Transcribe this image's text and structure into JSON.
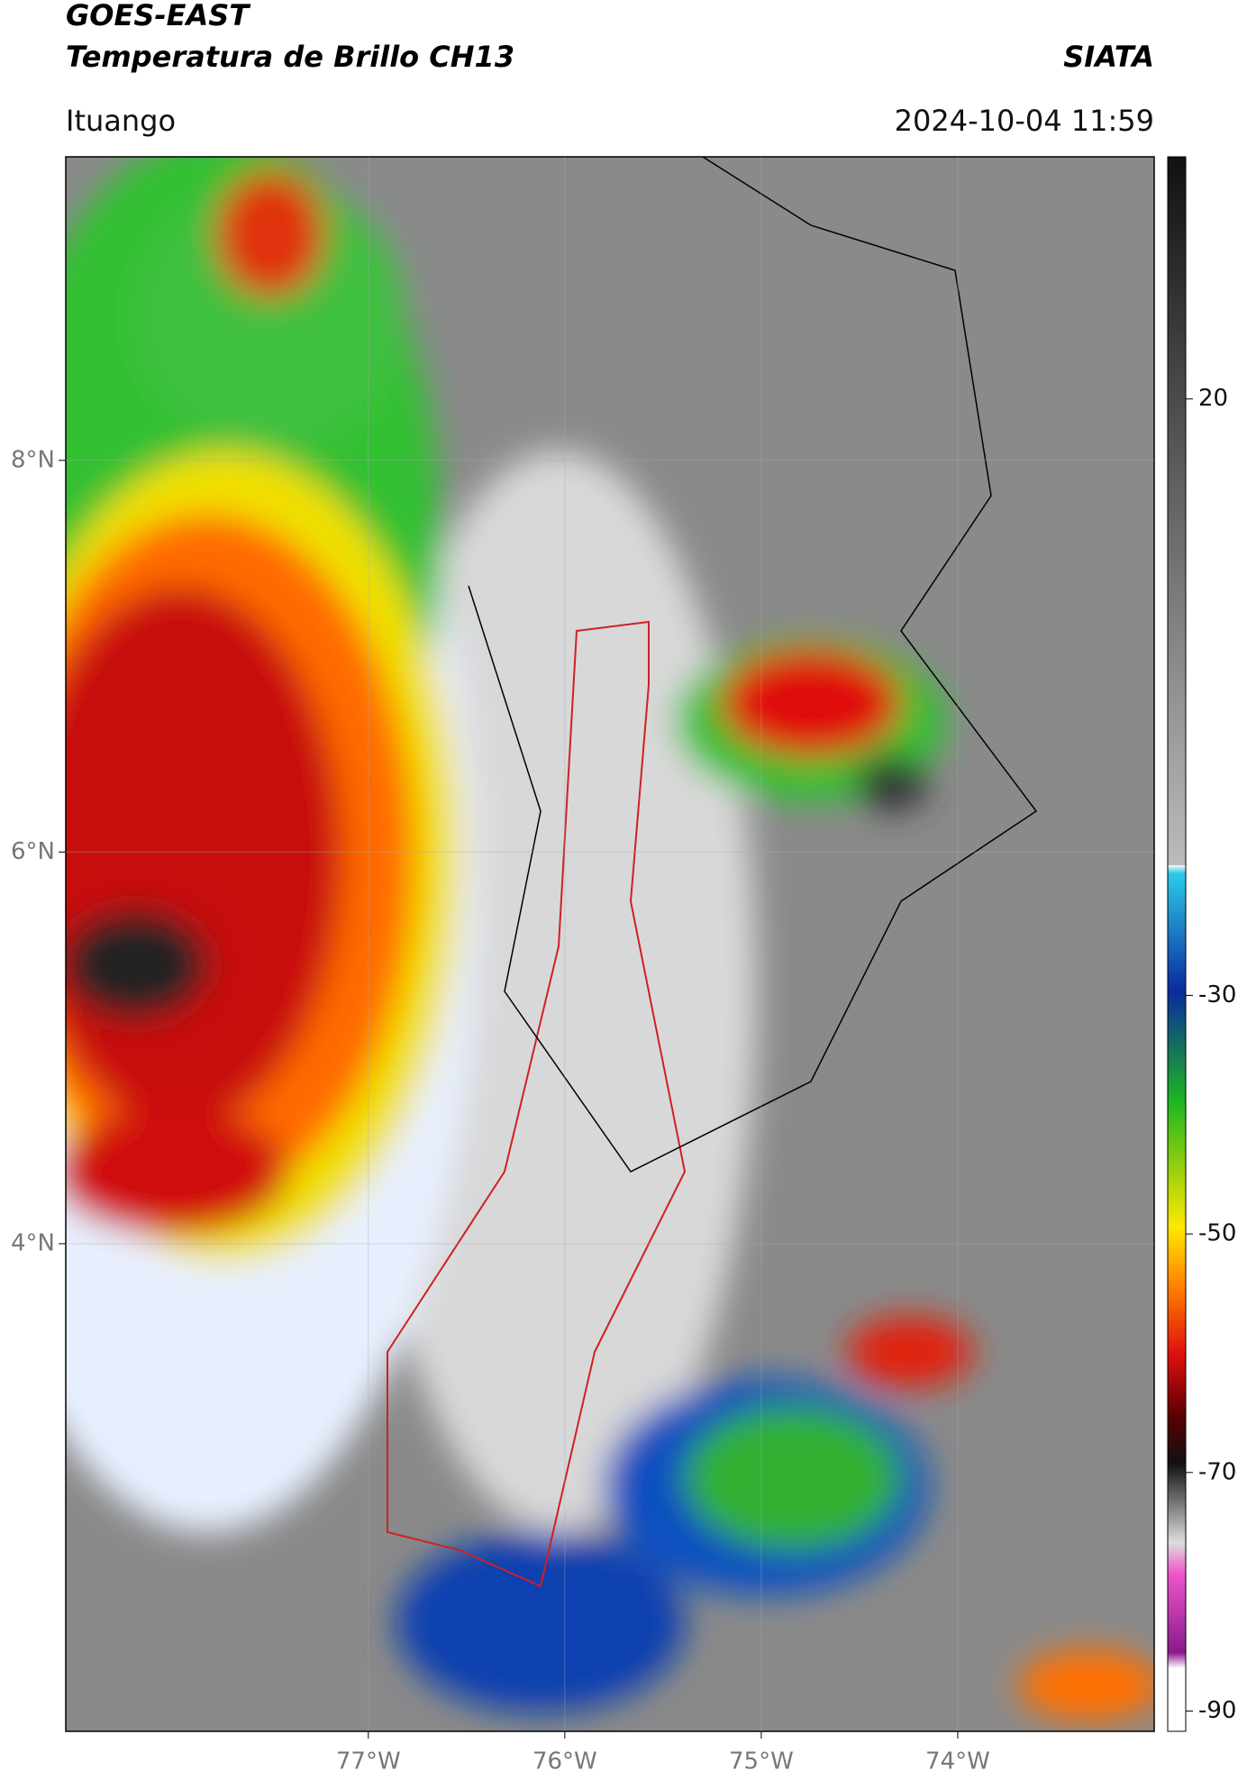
{
  "header": {
    "title_line1": "GOES-EAST",
    "title_line2": "Temperatura de Brillo CH13",
    "brand": "SIATA",
    "location": "Ituango",
    "datetime": "2024-10-04 11:59"
  },
  "map": {
    "xlim": [
      -78.54,
      -73.0
    ],
    "ylim": [
      1.51,
      9.55
    ],
    "xticks": [
      {
        "value": -77,
        "label": "77°W"
      },
      {
        "value": -76,
        "label": "76°W"
      },
      {
        "value": -75,
        "label": "75°W"
      },
      {
        "value": -74,
        "label": "74°W"
      }
    ],
    "yticks": [
      {
        "value": 8,
        "label": "8°N"
      },
      {
        "value": 6,
        "label": "6°N"
      },
      {
        "value": 4,
        "label": "4°N"
      }
    ]
  },
  "colorbar": {
    "lim": [
      -91.7,
      40.3
    ],
    "ticks": [
      20,
      -30,
      -50,
      -70,
      -90
    ]
  }
}
